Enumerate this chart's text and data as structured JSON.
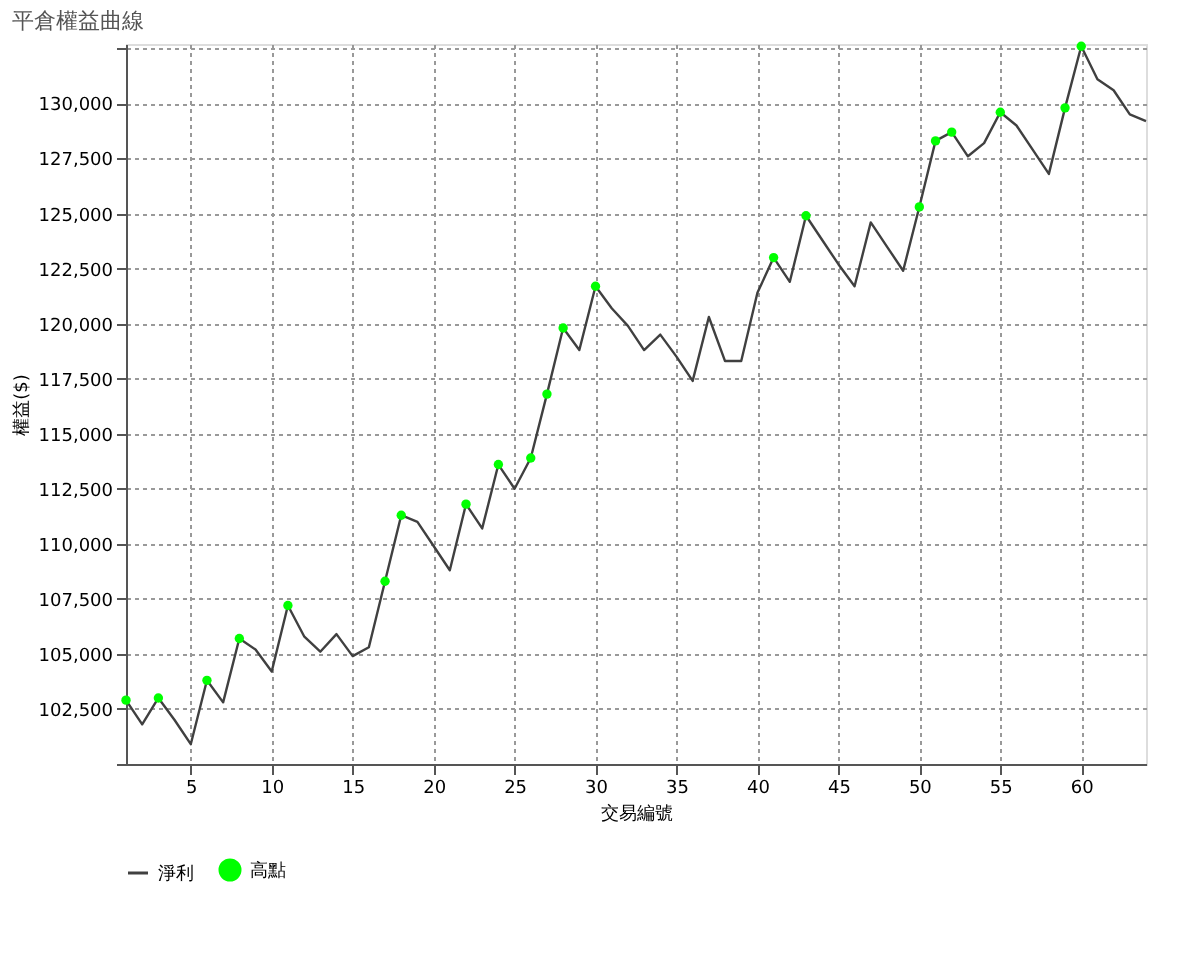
{
  "chart_data": {
    "type": "line",
    "title": "平倉權益曲線",
    "xlabel": "交易編號",
    "ylabel": "權益($)",
    "xlim": [
      1,
      64
    ],
    "xticks": [
      5,
      10,
      15,
      20,
      25,
      30,
      35,
      40,
      45,
      50,
      55,
      60
    ],
    "ylim": [
      100000,
      132700
    ],
    "yticks": [
      {
        "value": 100000,
        "label": null
      },
      {
        "value": 102500,
        "label": "102,500"
      },
      {
        "value": 105000,
        "label": "105,000"
      },
      {
        "value": 107500,
        "label": "107,500"
      },
      {
        "value": 110000,
        "label": "110,000"
      },
      {
        "value": 112500,
        "label": "112,500"
      },
      {
        "value": 115000,
        "label": "115,000"
      },
      {
        "value": 117500,
        "label": "117,500"
      },
      {
        "value": 120000,
        "label": "120,000"
      },
      {
        "value": 122500,
        "label": "122,500"
      },
      {
        "value": 125000,
        "label": "125,000"
      },
      {
        "value": 127500,
        "label": "127,500"
      },
      {
        "value": 130000,
        "label": "130,000"
      },
      {
        "value": 132500,
        "label": null
      }
    ],
    "grid": true,
    "legend": "bottom",
    "line_style": "solid",
    "series": [
      {
        "name": "淨利",
        "color": "#404040",
        "x": [
          1,
          2,
          3,
          4,
          5,
          6,
          7,
          8,
          9,
          10,
          11,
          12,
          13,
          14,
          15,
          16,
          17,
          18,
          19,
          20,
          21,
          22,
          23,
          24,
          25,
          26,
          27,
          28,
          29,
          30,
          31,
          32,
          33,
          34,
          35,
          36,
          37,
          38,
          39,
          40,
          41,
          42,
          43,
          44,
          45,
          46,
          47,
          48,
          49,
          50,
          51,
          52,
          53,
          54,
          55,
          56,
          57,
          58,
          59,
          60,
          61,
          62,
          63,
          64
        ],
        "values": [
          102900,
          101800,
          103000,
          102000,
          100900,
          103800,
          102800,
          105700,
          105200,
          104200,
          107200,
          105800,
          105100,
          105900,
          104900,
          105300,
          108300,
          111300,
          111000,
          109900,
          108800,
          111800,
          110700,
          113600,
          112500,
          113900,
          116800,
          119800,
          118800,
          121700,
          120700,
          119900,
          118800,
          119500,
          118500,
          117400,
          120300,
          118300,
          118300,
          121400,
          123000,
          121900,
          124900,
          123800,
          122700,
          121700,
          124600,
          123500,
          122400,
          125300,
          128300,
          128700,
          127600,
          128200,
          129600,
          129000,
          127900,
          126800,
          129800,
          132600,
          131100,
          130600,
          129500,
          129200
        ]
      },
      {
        "name": "高點",
        "type": "scatter",
        "color": "#00ff00",
        "marker": "circle",
        "x": [
          1,
          3,
          6,
          8,
          11,
          17,
          18,
          22,
          24,
          26,
          27,
          28,
          30,
          41,
          43,
          50,
          51,
          52,
          55,
          59,
          60
        ],
        "values": [
          102900,
          103000,
          103800,
          105700,
          107200,
          108300,
          111300,
          111800,
          113600,
          113900,
          116800,
          119800,
          121700,
          123000,
          124900,
          125300,
          128300,
          128700,
          129600,
          129800,
          132600
        ]
      }
    ]
  }
}
